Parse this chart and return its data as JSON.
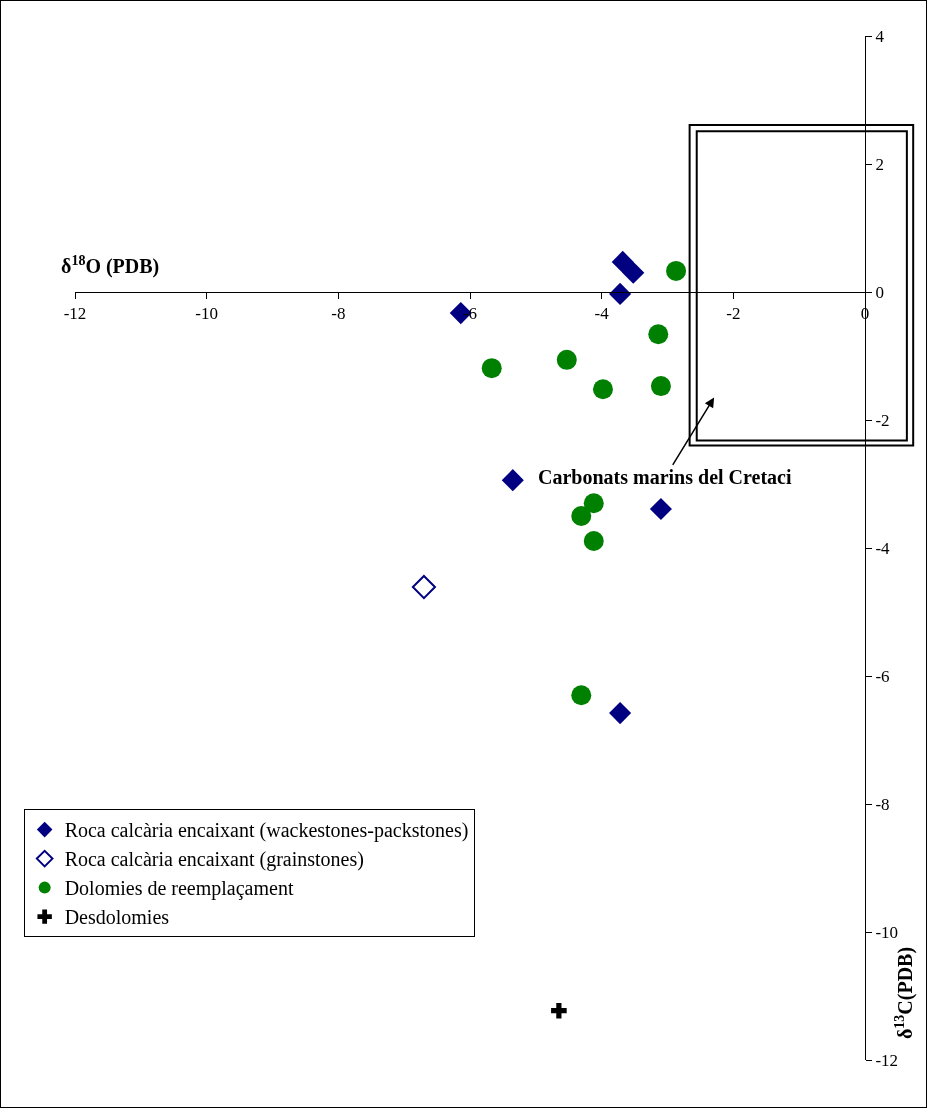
{
  "chart_data": {
    "type": "scatter",
    "xlabel": "δ$^{18}$O (PDB)",
    "ylabel": "δ$^{13}$C(PDB)",
    "xlim": [
      -12,
      0
    ],
    "xticks": [
      -12,
      -10,
      -8,
      -6,
      -4,
      -2,
      0
    ],
    "ylim": [
      -12,
      4
    ],
    "yticks": [
      -12,
      -10,
      -8,
      -6,
      -4,
      -2,
      0,
      2,
      4
    ],
    "grid": false,
    "legend": "bottom left",
    "annotations": [
      "Carbonats marins del Cretaci"
    ],
    "series": [
      {
        "name": "Roca calcària encaixant (wackestones-packstones)",
        "color": "#000080",
        "marker": "diamond",
        "x": [
          -3.68,
          -3.52,
          -3.72,
          -6.14,
          -5.35,
          -3.1,
          -3.72
        ],
        "values": [
          0.47,
          0.3,
          -0.03,
          -0.33,
          -2.94,
          -3.39,
          -6.58
        ]
      },
      {
        "name": "Roca calcària encaixant (grainstones)",
        "color": "#000080",
        "marker": "diamond-open",
        "x": [
          -6.7
        ],
        "values": [
          -4.61
        ]
      },
      {
        "name": "Dolomies de reemplaçament",
        "color": "#008000",
        "marker": "circle",
        "x": [
          -2.87,
          -3.14,
          -4.53,
          -5.67,
          -3.98,
          -3.1,
          -4.12,
          -4.31,
          -4.12,
          -4.31
        ],
        "values": [
          0.33,
          -0.66,
          -1.06,
          -1.19,
          -1.52,
          -1.47,
          -3.3,
          -3.5,
          -3.89,
          -6.3
        ]
      },
      {
        "name": "Desdolomies",
        "color": "#000000",
        "marker": "cross",
        "x": [
          -4.65
        ],
        "values": [
          -11.23
        ]
      }
    ]
  }
}
